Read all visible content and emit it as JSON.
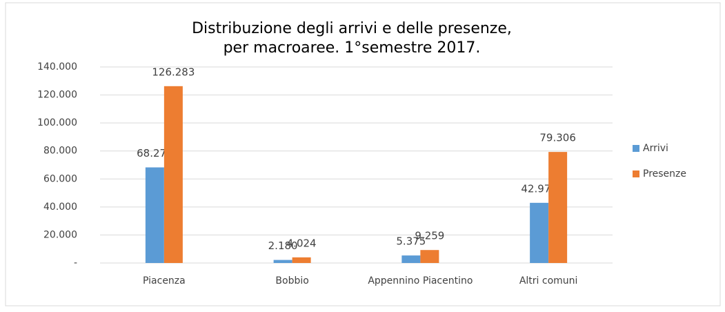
{
  "chart_data": {
    "type": "bar",
    "title": [
      "Distribuzione degli arrivi e delle presenze,",
      "per macroaree. 1°semestre 2017."
    ],
    "categories": [
      "Piacenza",
      "Bobbio",
      "Appennino Piacentino",
      "Altri comuni"
    ],
    "series": [
      {
        "name": "Arrivi",
        "color": "#5b9bd5",
        "values": [
          68277,
          2180,
          5375,
          42974
        ],
        "value_labels": [
          "68.277",
          "2.180",
          "5.375",
          "42.974"
        ]
      },
      {
        "name": "Presenze",
        "color": "#ed7d31",
        "values": [
          126283,
          4024,
          9259,
          79306
        ],
        "value_labels": [
          "126.283",
          "4.024",
          "9.259",
          "79.306"
        ]
      }
    ],
    "ylim": [
      0,
      140000
    ],
    "yticks": [
      {
        "value": 0,
        "label": "-"
      },
      {
        "value": 20000,
        "label": "20.000"
      },
      {
        "value": 40000,
        "label": "40.000"
      },
      {
        "value": 60000,
        "label": "60.000"
      },
      {
        "value": 80000,
        "label": "80.000"
      },
      {
        "value": 100000,
        "label": "100.000"
      },
      {
        "value": 120000,
        "label": "120.000"
      },
      {
        "value": 140000,
        "label": "140.000"
      }
    ],
    "grid": true,
    "legend": "right"
  }
}
